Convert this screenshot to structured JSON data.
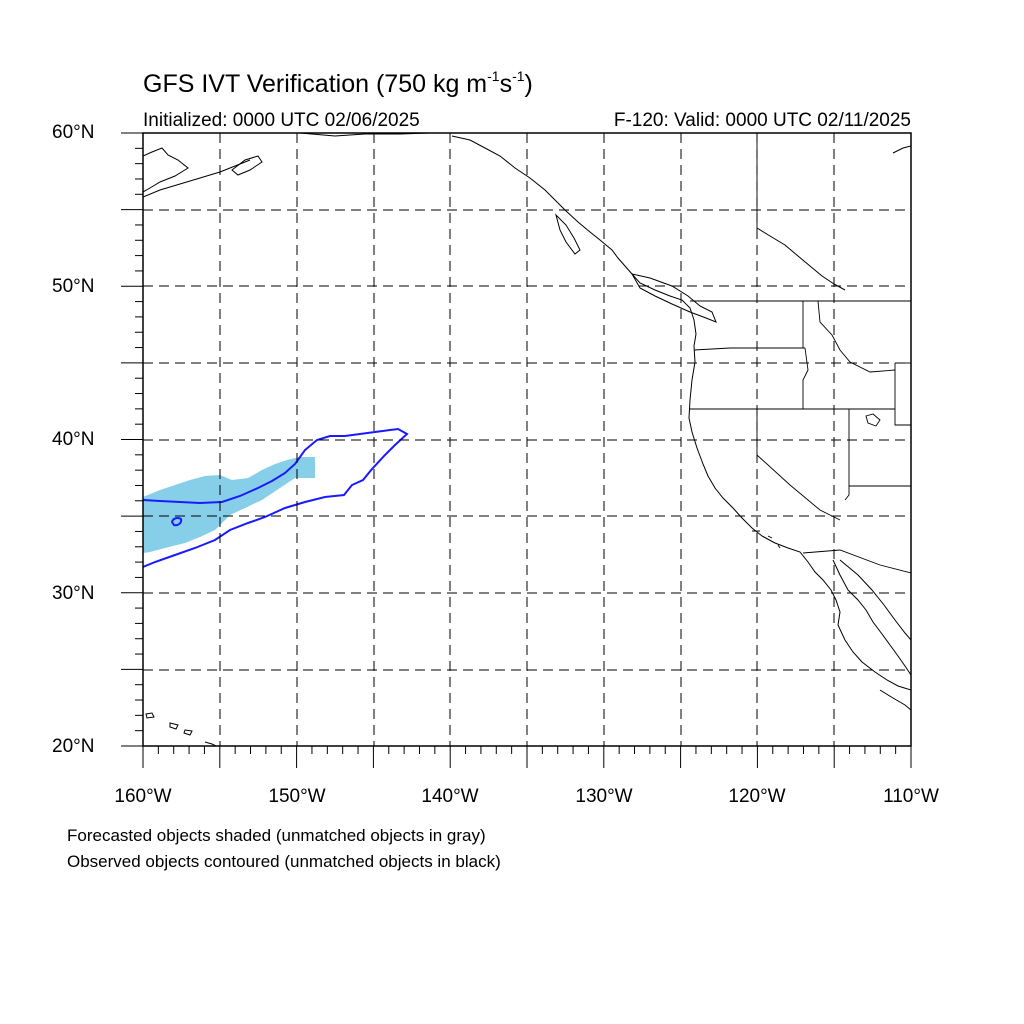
{
  "title": {
    "prefix": "GFS IVT Verification (750 kg m",
    "exp1": "-1",
    "middle": "s",
    "exp2": "-1",
    "suffix": ")"
  },
  "initialized": "Initialized: 0000 UTC 02/06/2025",
  "valid": "F-120: Valid: 0000 UTC 02/11/2025",
  "map": {
    "lat_range": [
      20,
      60
    ],
    "lon_range": [
      -160,
      -110
    ],
    "lat_ticks": [
      "60°N",
      "50°N",
      "40°N",
      "30°N",
      "20°N"
    ],
    "lon_ticks": [
      "160°W",
      "150°W",
      "140°W",
      "130°W",
      "120°W",
      "110°W"
    ],
    "grid_lines": "dashed, every 5 degrees",
    "forecast_shade_color": "#87cfe8",
    "observed_contour_color": "#1a1aff",
    "coastline_color": "#000000"
  },
  "legend_notes": [
    "Forecasted objects shaded (unmatched objects in gray)",
    "Observed objects contoured (unmatched objects in black)"
  ]
}
